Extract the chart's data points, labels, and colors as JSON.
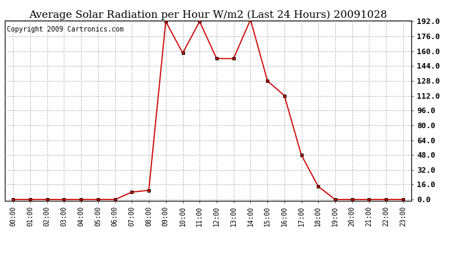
{
  "title": "Average Solar Radiation per Hour W/m2 (Last 24 Hours) 20091028",
  "copyright": "Copyright 2009 Cartronics.com",
  "hours": [
    "00:00",
    "01:00",
    "02:00",
    "03:00",
    "04:00",
    "05:00",
    "06:00",
    "07:00",
    "08:00",
    "09:00",
    "10:00",
    "11:00",
    "12:00",
    "13:00",
    "14:00",
    "15:00",
    "16:00",
    "17:00",
    "18:00",
    "19:00",
    "20:00",
    "21:00",
    "22:00",
    "23:00"
  ],
  "values": [
    0,
    0,
    0,
    0,
    0,
    0,
    0,
    8,
    10,
    192,
    158,
    192,
    152,
    152,
    194,
    128,
    112,
    48,
    14,
    0,
    0,
    0,
    0,
    0
  ],
  "line_color": "#cc0000",
  "marker_color": "#000000",
  "bg_color": "#ffffff",
  "grid_color": "#bbbbbb",
  "ylim_max": 192,
  "yticks": [
    0.0,
    16.0,
    32.0,
    48.0,
    64.0,
    80.0,
    96.0,
    112.0,
    128.0,
    144.0,
    160.0,
    176.0,
    192.0
  ],
  "title_fontsize": 11,
  "copyright_fontsize": 7,
  "tick_fontsize": 8,
  "xtick_fontsize": 7
}
